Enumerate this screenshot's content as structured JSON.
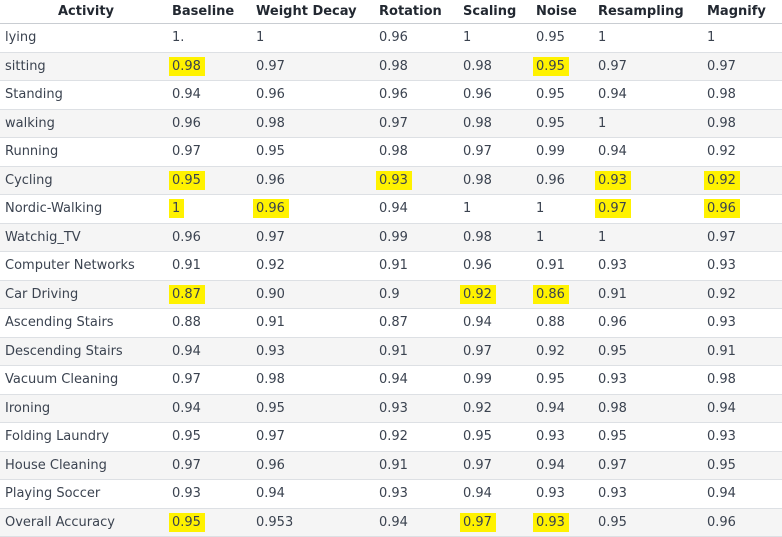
{
  "table": {
    "headers": [
      "Activity",
      "Baseline",
      "Weight Decay",
      "Rotation",
      "Scaling",
      "Noise",
      "Resampling",
      "Magnify"
    ],
    "rows": [
      [
        "lying",
        "1.",
        "1",
        "0.96",
        "1",
        "0.95",
        "1",
        "1"
      ],
      [
        "sitting",
        "0.98",
        "0.97",
        "0.98",
        "0.98",
        "0.95",
        "0.97",
        "0.97"
      ],
      [
        "Standing",
        "0.94",
        "0.96",
        "0.96",
        "0.96",
        "0.95",
        "0.94",
        "0.98"
      ],
      [
        "walking",
        "0.96",
        "0.98",
        "0.97",
        "0.98",
        "0.95",
        "1",
        "0.98"
      ],
      [
        "Running",
        "0.97",
        "0.95",
        "0.98",
        "0.97",
        "0.99",
        "0.94",
        "0.92"
      ],
      [
        "Cycling",
        "0.95",
        "0.96",
        "0.93",
        "0.98",
        "0.96",
        "0.93",
        "0.92"
      ],
      [
        "Nordic-Walking",
        "1",
        "0.96",
        "0.94",
        "1",
        "1",
        "0.97",
        "0.96"
      ],
      [
        "Watchig_TV",
        "0.96",
        "0.97",
        "0.99",
        "0.98",
        "1",
        "1",
        "0.97"
      ],
      [
        "Computer Networks",
        "0.91",
        "0.92",
        "0.91",
        "0.96",
        "0.91",
        "0.93",
        "0.93"
      ],
      [
        "Car Driving",
        "0.87",
        "0.90",
        "0.9",
        "0.92",
        "0.86",
        "0.91",
        "0.92"
      ],
      [
        "Ascending Stairs",
        "0.88",
        "0.91",
        "0.87",
        "0.94",
        "0.88",
        "0.96",
        "0.93"
      ],
      [
        "Descending Stairs",
        "0.94",
        "0.93",
        "0.91",
        "0.97",
        "0.92",
        "0.95",
        "0.91"
      ],
      [
        "Vacuum Cleaning",
        "0.97",
        "0.98",
        "0.94",
        "0.99",
        "0.95",
        "0.93",
        "0.98"
      ],
      [
        "Ironing",
        "0.94",
        "0.95",
        "0.93",
        "0.92",
        "0.94",
        "0.98",
        "0.94"
      ],
      [
        "Folding Laundry",
        "0.95",
        "0.97",
        "0.92",
        "0.95",
        "0.93",
        "0.95",
        "0.93"
      ],
      [
        "House Cleaning",
        "0.97",
        "0.96",
        "0.91",
        "0.97",
        "0.94",
        "0.97",
        "0.95"
      ],
      [
        "Playing Soccer",
        "0.93",
        "0.94",
        "0.93",
        "0.94",
        "0.93",
        "0.93",
        "0.94"
      ],
      [
        "Overall Accuracy",
        "0.95",
        "0.953",
        "0.94",
        "0.97",
        "0.93",
        "0.95",
        "0.96"
      ]
    ],
    "highlighted": [
      [
        1,
        1
      ],
      [
        1,
        5
      ],
      [
        5,
        1
      ],
      [
        5,
        3
      ],
      [
        5,
        6
      ],
      [
        5,
        7
      ],
      [
        6,
        1
      ],
      [
        6,
        2
      ],
      [
        6,
        6
      ],
      [
        6,
        7
      ],
      [
        9,
        1
      ],
      [
        9,
        4
      ],
      [
        9,
        5
      ],
      [
        17,
        1
      ],
      [
        17,
        4
      ],
      [
        17,
        5
      ]
    ],
    "highlight_color": "#fff200"
  }
}
